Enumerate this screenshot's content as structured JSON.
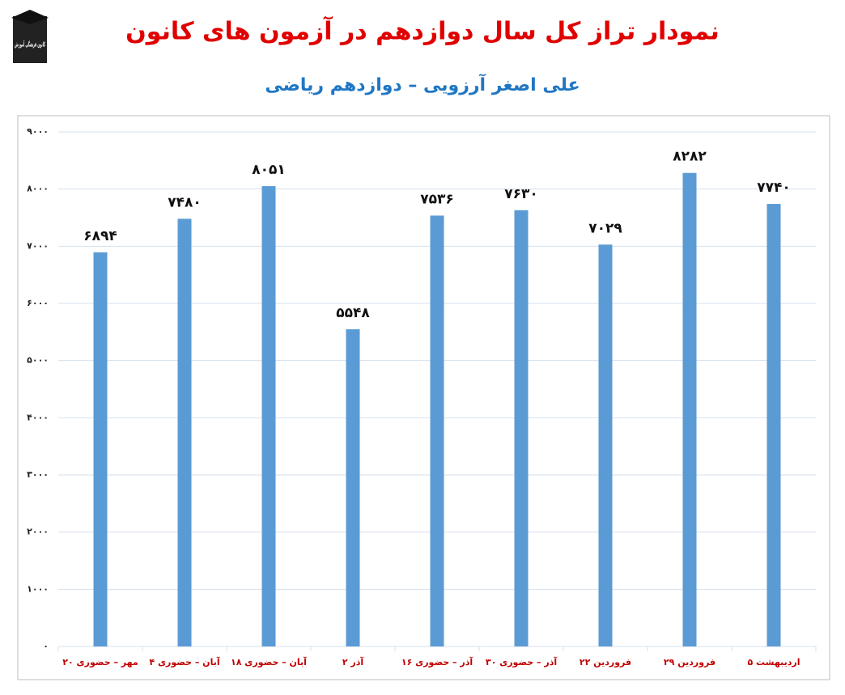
{
  "chart_data": {
    "type": "bar",
    "title": "نمودار تراز کل سال دوازدهم در آزمون های کانون",
    "subtitle": "علی اصغر آرزویی – دوازدهم ریاضی",
    "logo_text": "کانون فرهنگی آموزش",
    "categories": [
      "۲۰ مهر – حضوری",
      "۴ آبان – حضوری",
      "۱۸ آبان – حضوری",
      "۲ آذر",
      "۱۶ آذر – حضوری",
      "۳۰ آذر – حضوری",
      "۲۲ فروردین",
      "۲۹ فروردین",
      "۵ اردیبهشت"
    ],
    "values": [
      6894,
      7480,
      8051,
      5548,
      7536,
      7630,
      7029,
      8282,
      7740
    ],
    "value_labels": [
      "۶۸۹۴",
      "۷۴۸۰",
      "۸۰۵۱",
      "۵۵۴۸",
      "۷۵۳۶",
      "۷۶۳۰",
      "۷۰۲۹",
      "۸۲۸۲",
      "۷۷۴۰"
    ],
    "color": "#5b9bd5",
    "ylim": [
      0,
      9000
    ],
    "yticks": [
      {
        "value": 0,
        "label": "۰"
      },
      {
        "value": 1000,
        "label": "۱۰۰۰"
      },
      {
        "value": 2000,
        "label": "۲۰۰۰"
      },
      {
        "value": 3000,
        "label": "۳۰۰۰"
      },
      {
        "value": 4000,
        "label": "۴۰۰۰"
      },
      {
        "value": 5000,
        "label": "۵۰۰۰"
      },
      {
        "value": 6000,
        "label": "۶۰۰۰"
      },
      {
        "value": 7000,
        "label": "۷۰۰۰"
      },
      {
        "value": 8000,
        "label": "۸۰۰۰"
      },
      {
        "value": 9000,
        "label": "۹۰۰۰"
      }
    ],
    "grid": true
  }
}
